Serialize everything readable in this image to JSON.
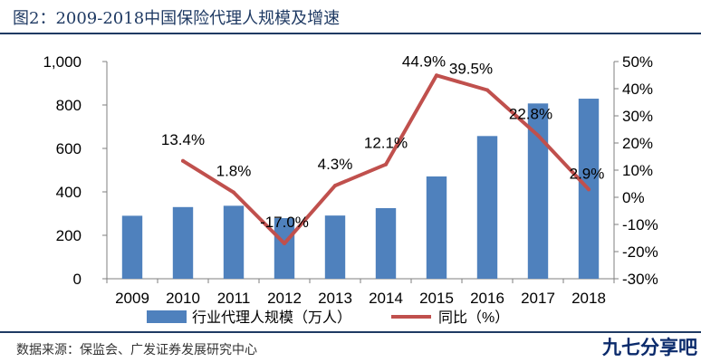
{
  "figure_title": "图2：2009-2018中国保险代理人规模及增速",
  "source": "数据来源：保监会、广发证券发展研究中心",
  "watermark": "九七分享吧",
  "colors": {
    "bars": "#4f81bd",
    "line": "#c0504d",
    "title": "#1f3a63"
  },
  "chart_data": {
    "type": "bar",
    "title": "",
    "categories": [
      "2009",
      "2010",
      "2011",
      "2012",
      "2013",
      "2014",
      "2015",
      "2016",
      "2017",
      "2018"
    ],
    "series": [
      {
        "name": "行业代理人规模（万人）",
        "type": "bar",
        "axis": "left",
        "values": [
          290,
          330,
          336,
          279,
          291,
          325,
          471,
          657,
          807,
          829
        ]
      },
      {
        "name": "同比（%）",
        "type": "line",
        "axis": "right",
        "values": [
          null,
          13.4,
          1.8,
          -17.0,
          4.3,
          12.1,
          44.9,
          39.5,
          22.8,
          2.9
        ],
        "labels": [
          "",
          "13.4%",
          "1.8%",
          "-17.0%",
          "4.3%",
          "12.1%",
          "44.9%",
          "39.5%",
          "22.8%",
          "2.9%"
        ]
      }
    ],
    "y_left": {
      "min": 0,
      "max": 1000,
      "ticks": [
        0,
        200,
        400,
        600,
        800,
        1000
      ],
      "tick_labels": [
        "0",
        "200",
        "400",
        "600",
        "800",
        "1,000"
      ]
    },
    "y_right": {
      "min": -30,
      "max": 50,
      "ticks": [
        -30,
        -20,
        -10,
        0,
        10,
        20,
        30,
        40,
        50
      ],
      "tick_labels": [
        "-30%",
        "-20%",
        "-10%",
        "0%",
        "10%",
        "20%",
        "30%",
        "40%",
        "50%"
      ]
    },
    "grid": false,
    "legend_position": "bottom"
  }
}
